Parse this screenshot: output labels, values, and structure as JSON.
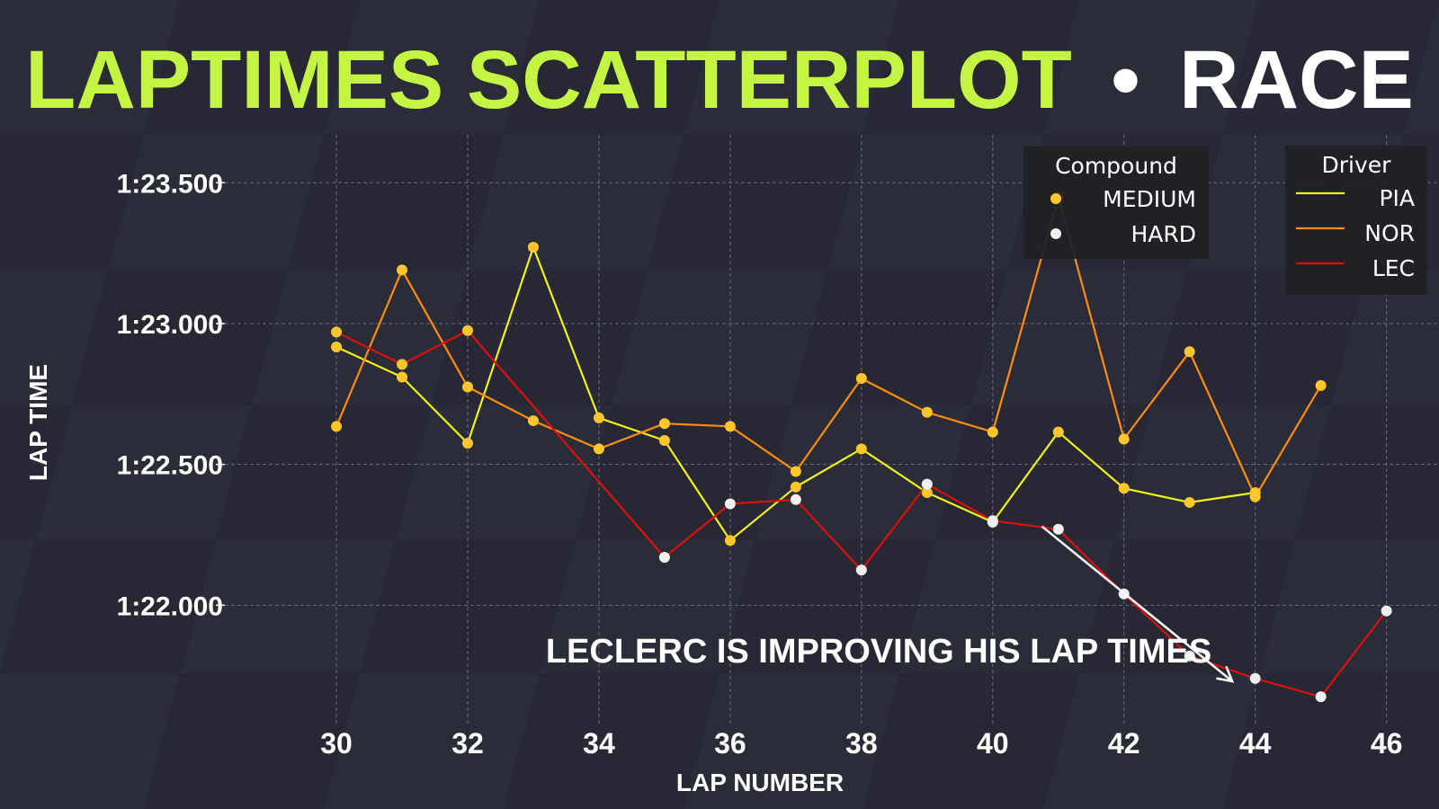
{
  "title": {
    "main": "LAPTIMES SCATTERPLOT",
    "separator": "•",
    "sub": "RACE",
    "main_color": "#c4f545",
    "sub_color": "#ffffff"
  },
  "annotation": {
    "text": "LECLERC IS IMPROVING HIS LAP TIMES",
    "arrow_from": [
      40.75,
      82.28
    ],
    "arrow_to": [
      43.65,
      81.73
    ]
  },
  "chart_data": {
    "type": "line",
    "xlabel": "LAP NUMBER",
    "ylabel": "LAP TIME",
    "xlim": [
      28.3,
      46.8
    ],
    "ylim": [
      81.5,
      83.67
    ],
    "xticks": [
      30,
      32,
      34,
      36,
      38,
      40,
      42,
      44,
      46
    ],
    "yticks": [
      {
        "value": 82.0,
        "label": "1:22.000"
      },
      {
        "value": 82.5,
        "label": "1:22.500"
      },
      {
        "value": 83.0,
        "label": "1:23.000"
      },
      {
        "value": 83.5,
        "label": "1:23.500"
      }
    ],
    "grid": true,
    "compound_colors": {
      "MEDIUM": "#ffc62e",
      "HARD": "#f0f0f0"
    },
    "legends": [
      {
        "title": "Compound",
        "placement": "top-right",
        "items": [
          {
            "label": "MEDIUM",
            "color": "#ffc62e"
          },
          {
            "label": "HARD",
            "color": "#f0f0f0"
          }
        ]
      },
      {
        "title": "Driver",
        "placement": "top-right",
        "items": [
          {
            "label": "PIA",
            "color": "#f2f21f"
          },
          {
            "label": "NOR",
            "color": "#ff8c12"
          },
          {
            "label": "LEC",
            "color": "#dd0e0e"
          }
        ]
      }
    ],
    "series": [
      {
        "name": "PIA",
        "color": "#f2f21f",
        "x": [
          30,
          31,
          32,
          33,
          34,
          35,
          36,
          37,
          38,
          39,
          40,
          41,
          42,
          43,
          44
        ],
        "y": [
          82.917,
          82.81,
          82.575,
          83.271,
          82.665,
          82.585,
          82.23,
          82.42,
          82.555,
          82.4,
          82.295,
          82.615,
          82.415,
          82.365,
          82.4
        ],
        "compound": [
          "MEDIUM",
          "MEDIUM",
          "MEDIUM",
          "MEDIUM",
          "MEDIUM",
          "MEDIUM",
          "MEDIUM",
          "MEDIUM",
          "MEDIUM",
          "MEDIUM",
          "HARD",
          "MEDIUM",
          "MEDIUM",
          "MEDIUM",
          "MEDIUM"
        ]
      },
      {
        "name": "NOR",
        "color": "#ff8c12",
        "x": [
          30,
          31,
          32,
          33,
          34,
          35,
          36,
          37,
          38,
          39,
          40,
          41,
          42,
          43,
          44,
          45
        ],
        "y": [
          82.635,
          83.19,
          82.775,
          82.655,
          82.555,
          82.645,
          82.635,
          82.475,
          82.805,
          82.685,
          82.615,
          83.45,
          82.59,
          82.9,
          82.385,
          82.78
        ],
        "compound": [
          "MEDIUM",
          "MEDIUM",
          "MEDIUM",
          "MEDIUM",
          "MEDIUM",
          "MEDIUM",
          "MEDIUM",
          "MEDIUM",
          "MEDIUM",
          "MEDIUM",
          "MEDIUM",
          "MEDIUM",
          "MEDIUM",
          "MEDIUM",
          "MEDIUM",
          "MEDIUM"
        ]
      },
      {
        "name": "LEC",
        "color": "#dd0e0e",
        "x": [
          30,
          31,
          32,
          35,
          36,
          37,
          38,
          39,
          40,
          41,
          42,
          43,
          44,
          45,
          46
        ],
        "y": [
          82.97,
          82.855,
          82.975,
          82.17,
          82.36,
          82.375,
          82.125,
          82.43,
          82.3,
          82.27,
          82.04,
          81.82,
          81.74,
          81.675,
          81.98
        ],
        "compound": [
          "MEDIUM",
          "MEDIUM",
          "MEDIUM",
          "HARD",
          "HARD",
          "HARD",
          "HARD",
          "HARD",
          "HARD",
          "HARD",
          "HARD",
          "HARD",
          "HARD",
          "HARD",
          "HARD"
        ]
      }
    ]
  }
}
